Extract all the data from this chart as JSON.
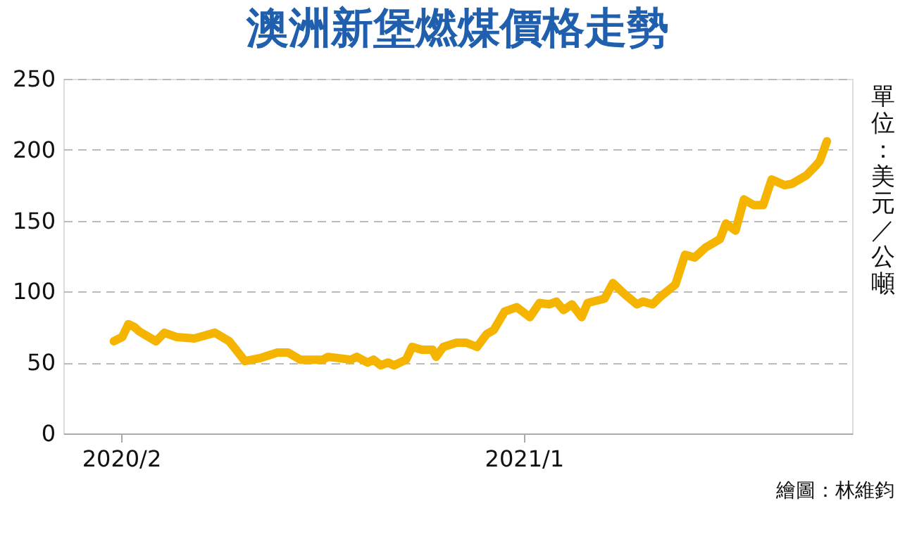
{
  "chart_data": {
    "type": "line",
    "title": "澳洲新堡燃煤價格走勢",
    "ylabel": "單位：美元／公噸",
    "annotations": [
      "繪圖：林維鈞"
    ],
    "x": [
      "2020-01-26",
      "2020-02-02",
      "2020-02-07",
      "2020-02-12",
      "2020-02-16",
      "2020-03-01",
      "2020-03-08",
      "2020-03-18",
      "2020-04-02",
      "2020-04-19",
      "2020-05-01",
      "2020-05-14",
      "2020-05-26",
      "2020-06-10",
      "2020-06-19",
      "2020-06-29",
      "2020-07-18",
      "2020-07-22",
      "2020-08-10",
      "2020-08-15",
      "2020-08-24",
      "2020-08-29",
      "2020-09-04",
      "2020-09-10",
      "2020-09-15",
      "2020-09-25",
      "2020-09-30",
      "2020-10-08",
      "2020-10-17",
      "2020-10-20",
      "2020-10-26",
      "2020-11-06",
      "2020-11-14",
      "2020-11-23",
      "2020-12-01",
      "2020-12-07",
      "2020-12-16",
      "2020-12-26",
      "2021-01-06",
      "2021-01-14",
      "2021-01-22",
      "2021-01-28",
      "2021-02-03",
      "2021-02-10",
      "2021-02-18",
      "2021-02-23",
      "2021-03-09",
      "2021-03-16",
      "2021-03-26",
      "2021-04-05",
      "2021-04-10",
      "2021-04-18",
      "2021-04-24",
      "2021-05-07",
      "2021-05-15",
      "2021-05-23",
      "2021-06-01",
      "2021-06-13",
      "2021-06-18",
      "2021-06-26",
      "2021-07-03",
      "2021-07-11",
      "2021-07-19",
      "2021-07-26",
      "2021-08-06",
      "2021-08-12",
      "2021-08-24",
      "2021-09-01",
      "2021-09-04",
      "2021-09-10"
    ],
    "series": [
      {
        "color": "#f5b400",
        "values": [
          65,
          68,
          77,
          75,
          72,
          65,
          71,
          68,
          67,
          71,
          65,
          51,
          53,
          57,
          57,
          52,
          52,
          54,
          52,
          54,
          50,
          52,
          48,
          50,
          48,
          52,
          61,
          59,
          59,
          54,
          61,
          64,
          64,
          61,
          70,
          73,
          86,
          89,
          82,
          92,
          91,
          93,
          87,
          91,
          82,
          92,
          95,
          106,
          98,
          91,
          93,
          91,
          96,
          105,
          126,
          124,
          131,
          137,
          148,
          143,
          165,
          161,
          161,
          179,
          175,
          176,
          182,
          189,
          192,
          206
        ]
      }
    ],
    "xlim": [
      "2019-12-15",
      "2021-10-01"
    ],
    "xticks": [
      {
        "value": "2020-02",
        "label": "2020/2"
      },
      {
        "value": "2021-01",
        "label": "2021/1"
      }
    ],
    "ylim": [
      0,
      250
    ],
    "yticks": [
      0,
      50,
      100,
      150,
      200,
      250
    ],
    "grid": "y",
    "legend": false,
    "marker": "none",
    "line_style": "solid"
  }
}
